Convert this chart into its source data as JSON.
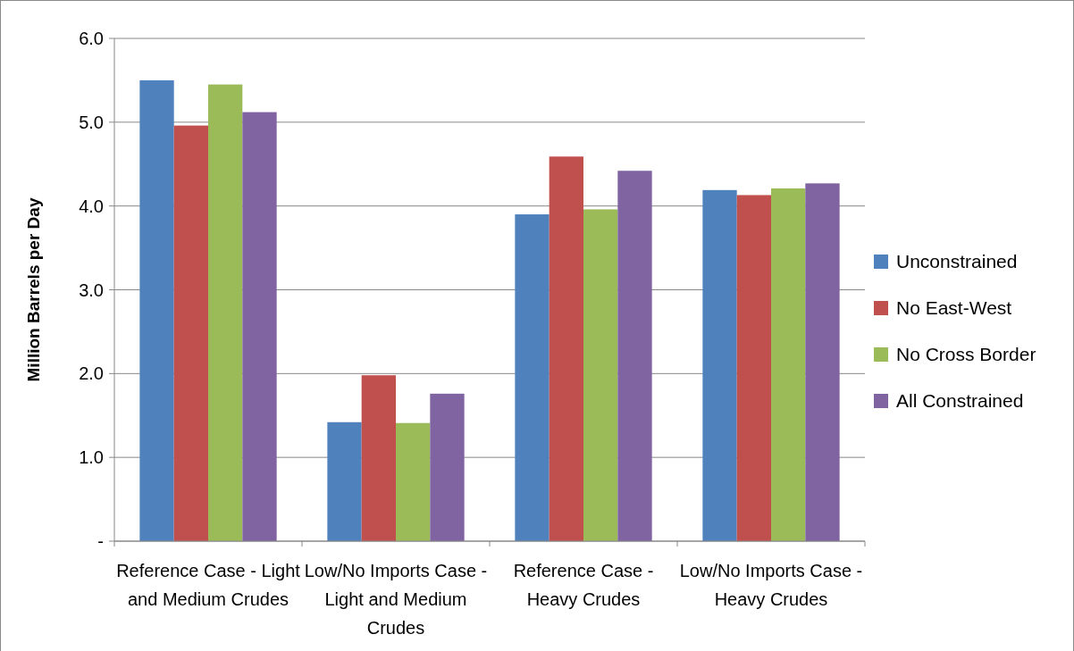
{
  "chart_data": {
    "type": "bar",
    "ylabel": "Million Barrels per Day",
    "categories": [
      "Reference Case - Light and Medium Crudes",
      "Low/No Imports Case - Light and Medium Crudes",
      "Reference Case - Heavy Crudes",
      "Low/No Imports Case - Heavy Crudes"
    ],
    "series": [
      {
        "name": "Unconstrained",
        "color": "#4f81bd",
        "values": [
          5.5,
          1.42,
          3.9,
          4.19
        ]
      },
      {
        "name": "No East-West",
        "color": "#c0504d",
        "values": [
          4.96,
          1.98,
          4.59,
          4.13
        ]
      },
      {
        "name": "No Cross Border",
        "color": "#9bbb59",
        "values": [
          5.45,
          1.41,
          3.96,
          4.21
        ]
      },
      {
        "name": "All Constrained",
        "color": "#8064a2",
        "values": [
          5.12,
          1.76,
          4.42,
          4.27
        ]
      }
    ],
    "ylim": [
      0,
      6
    ],
    "yticks": [
      {
        "value": 0,
        "label": "-"
      },
      {
        "value": 1,
        "label": "1.0"
      },
      {
        "value": 2,
        "label": "2.0"
      },
      {
        "value": 3,
        "label": "3.0"
      },
      {
        "value": 4,
        "label": "4.0"
      },
      {
        "value": 5,
        "label": "5.0"
      },
      {
        "value": 6,
        "label": "6.0"
      }
    ],
    "grid": "y",
    "legend": "right"
  }
}
